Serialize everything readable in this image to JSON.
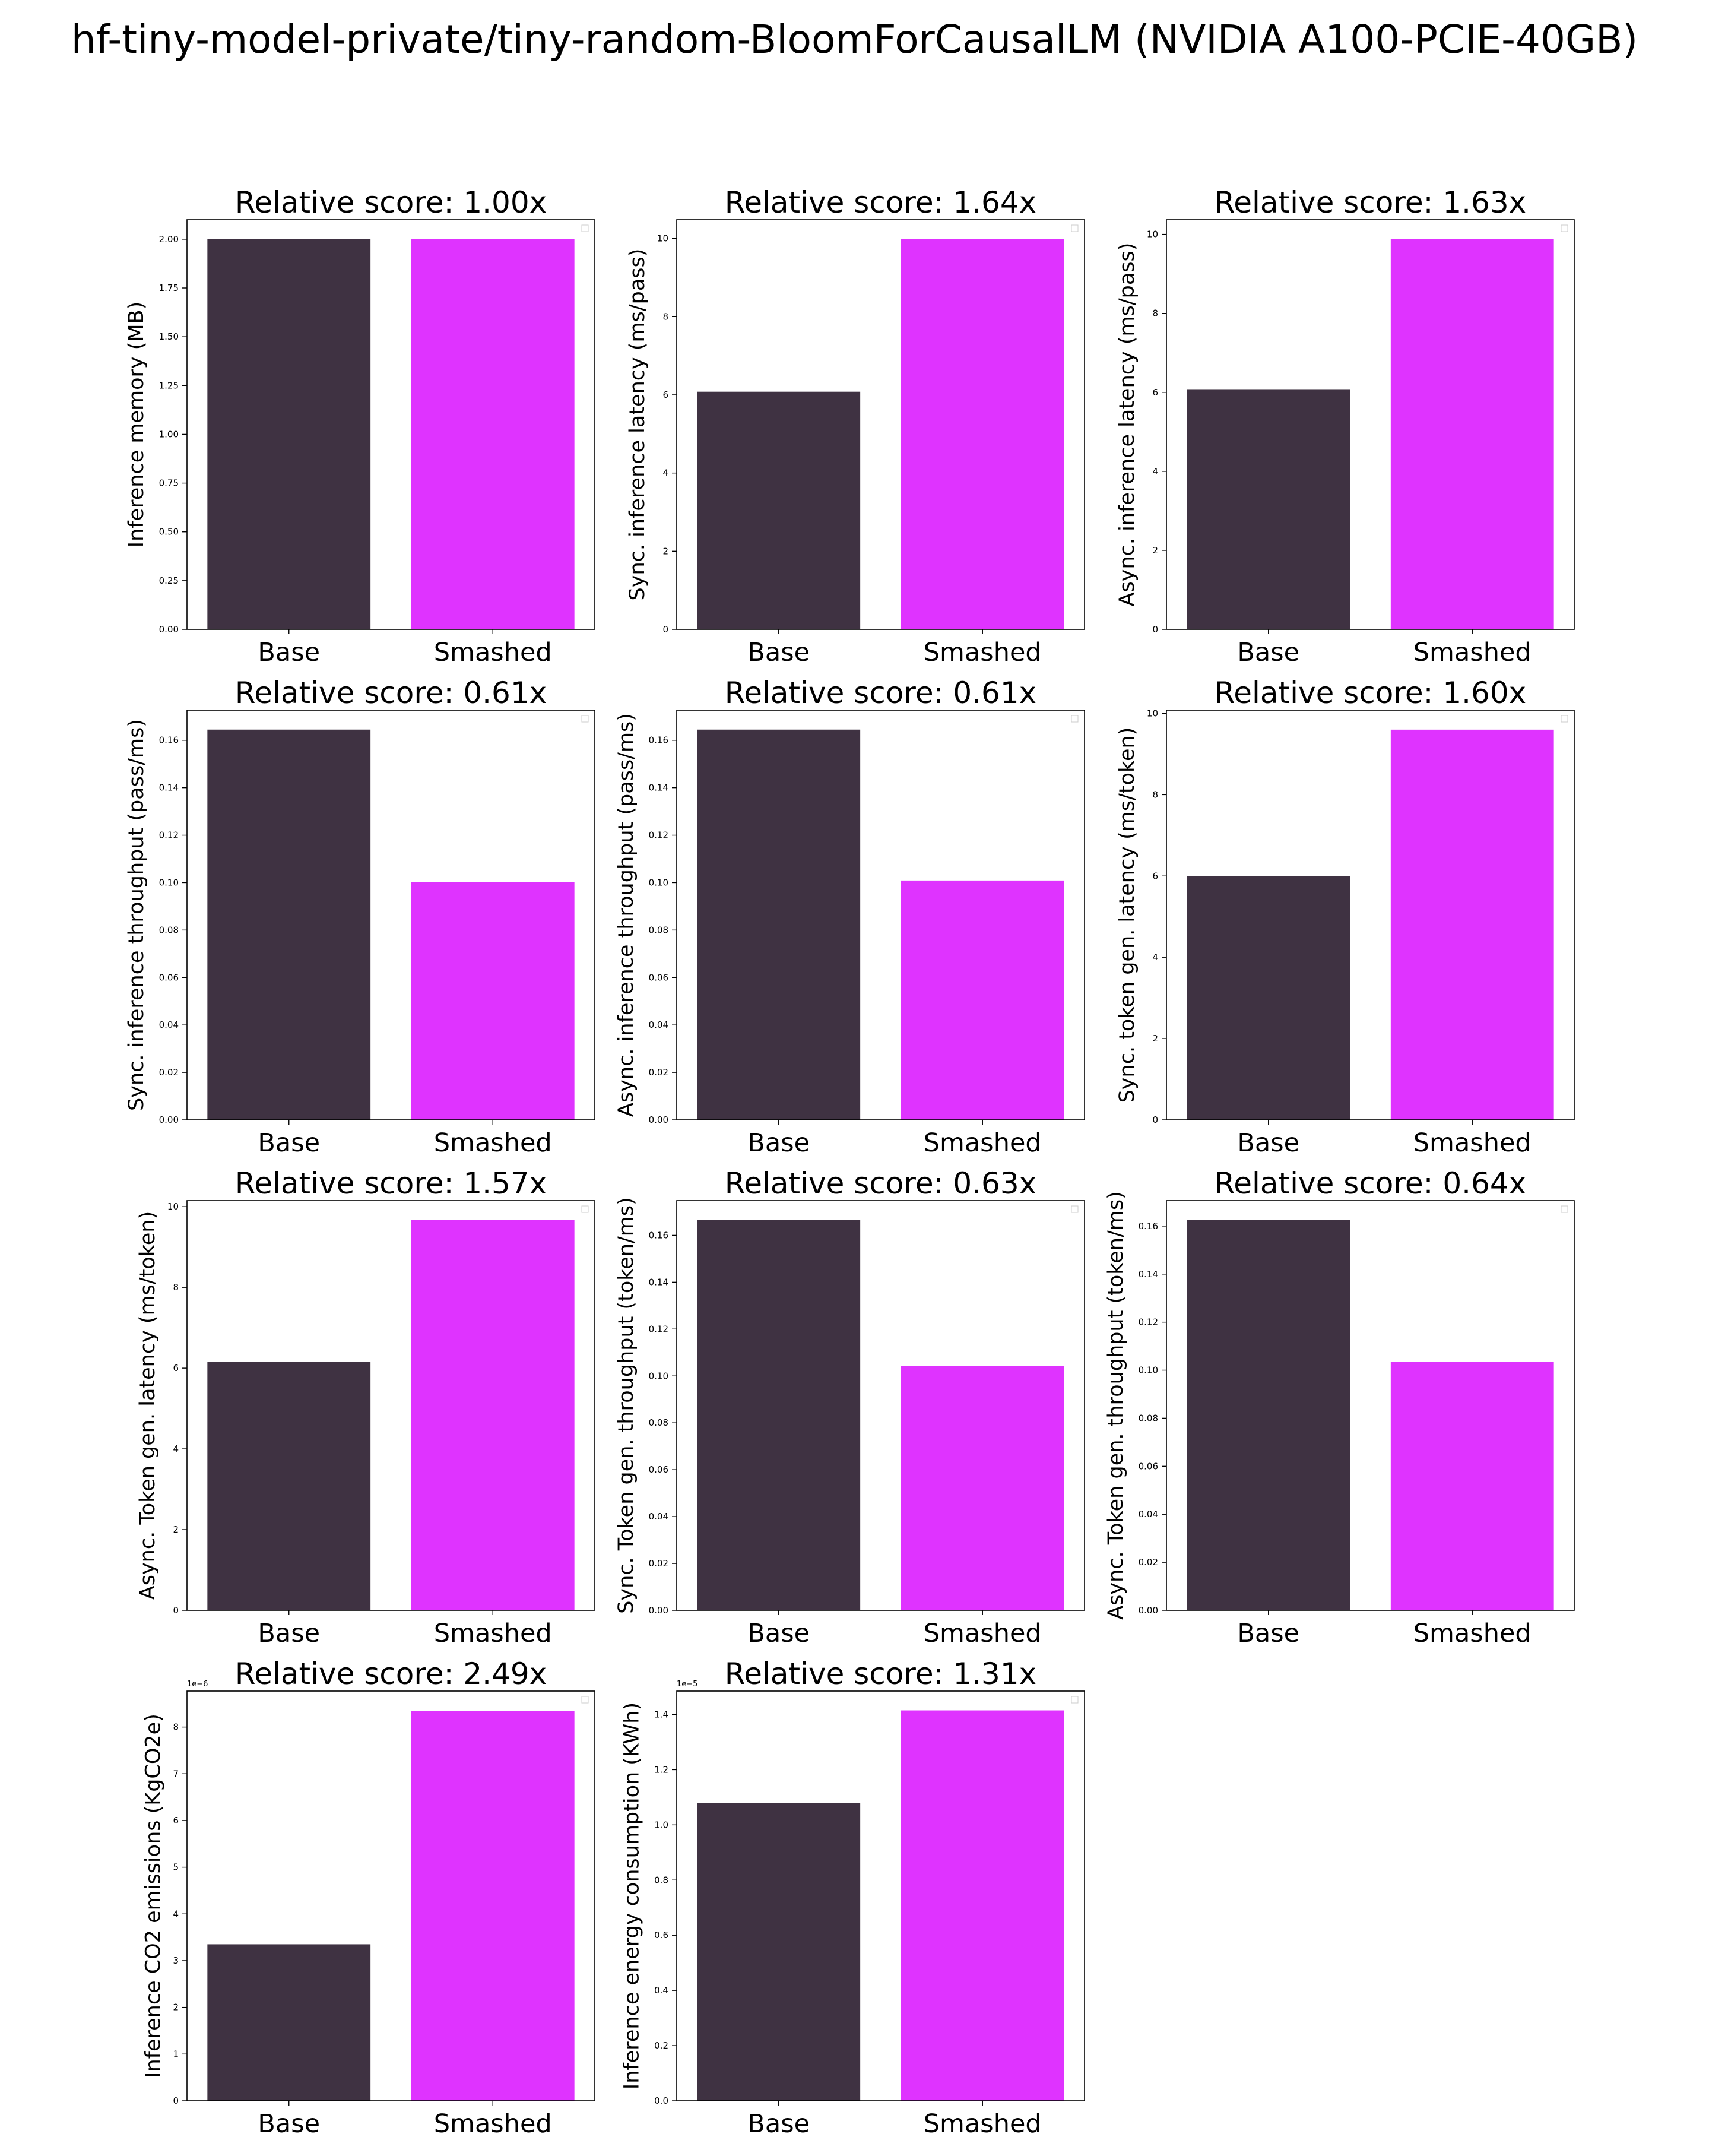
{
  "figure": {
    "title": "hf-tiny-model-private/tiny-random-BloomForCausalLM (NVIDIA A100-PCIE-40GB)",
    "colors": {
      "base": "#3f3242",
      "smashed": "#df33ff",
      "axes": "#000000"
    }
  },
  "chart_data": [
    {
      "type": "bar",
      "title": "Relative score: 1.00x",
      "ylabel": "Inference memory (MB)",
      "categories": [
        "Base",
        "Smashed"
      ],
      "values": [
        2.0,
        2.0
      ],
      "ylim": [
        0,
        2.1
      ],
      "yticks": [
        0.0,
        0.25,
        0.5,
        0.75,
        1.0,
        1.25,
        1.5,
        1.75,
        2.0
      ],
      "ytick_labels": [
        "0.00",
        "0.25",
        "0.50",
        "0.75",
        "1.00",
        "1.25",
        "1.50",
        "1.75",
        "2.00"
      ],
      "multiplier": "",
      "legend": "top-right",
      "grid": false
    },
    {
      "type": "bar",
      "title": "Relative score: 1.64x",
      "ylabel": "Sync. inference latency (ms/pass)",
      "categories": [
        "Base",
        "Smashed"
      ],
      "values": [
        6.08,
        9.98
      ],
      "ylim": [
        0,
        10.48
      ],
      "yticks": [
        0,
        2,
        4,
        6,
        8,
        10
      ],
      "ytick_labels": [
        "0",
        "2",
        "4",
        "6",
        "8",
        "10"
      ],
      "multiplier": "",
      "legend": "top-right",
      "grid": false
    },
    {
      "type": "bar",
      "title": "Relative score: 1.63x",
      "ylabel": "Async. inference latency (ms/pass)",
      "categories": [
        "Base",
        "Smashed"
      ],
      "values": [
        6.08,
        9.88
      ],
      "ylim": [
        0,
        10.37
      ],
      "yticks": [
        0,
        2,
        4,
        6,
        8,
        10
      ],
      "ytick_labels": [
        "0",
        "2",
        "4",
        "6",
        "8",
        "10"
      ],
      "multiplier": "",
      "legend": "top-right",
      "grid": false
    },
    {
      "type": "bar",
      "title": "Relative score: 0.61x",
      "ylabel": "Sync. inference throughput (pass/ms)",
      "categories": [
        "Base",
        "Smashed"
      ],
      "values": [
        0.1645,
        0.1002
      ],
      "ylim": [
        0,
        0.1727
      ],
      "yticks": [
        0,
        0.02,
        0.04,
        0.06,
        0.08,
        0.1,
        0.12,
        0.14,
        0.16
      ],
      "ytick_labels": [
        "0.00",
        "0.02",
        "0.04",
        "0.06",
        "0.08",
        "0.10",
        "0.12",
        "0.14",
        "0.16"
      ],
      "multiplier": "",
      "legend": "top-right",
      "grid": false
    },
    {
      "type": "bar",
      "title": "Relative score: 0.61x",
      "ylabel": "Async. inference throughput (pass/ms)",
      "categories": [
        "Base",
        "Smashed"
      ],
      "values": [
        0.1645,
        0.1009
      ],
      "ylim": [
        0,
        0.1727
      ],
      "yticks": [
        0,
        0.02,
        0.04,
        0.06,
        0.08,
        0.1,
        0.12,
        0.14,
        0.16
      ],
      "ytick_labels": [
        "0.00",
        "0.02",
        "0.04",
        "0.06",
        "0.08",
        "0.10",
        "0.12",
        "0.14",
        "0.16"
      ],
      "multiplier": "",
      "legend": "top-right",
      "grid": false
    },
    {
      "type": "bar",
      "title": "Relative score: 1.60x",
      "ylabel": "Sync. token gen. latency (ms/token)",
      "categories": [
        "Base",
        "Smashed"
      ],
      "values": [
        6.0,
        9.6
      ],
      "ylim": [
        0,
        10.08
      ],
      "yticks": [
        0,
        2,
        4,
        6,
        8,
        10
      ],
      "ytick_labels": [
        "0",
        "2",
        "4",
        "6",
        "8",
        "10"
      ],
      "multiplier": "",
      "legend": "top-right",
      "grid": false
    },
    {
      "type": "bar",
      "title": "Relative score: 1.57x",
      "ylabel": "Async. Token gen. latency (ms/token)",
      "categories": [
        "Base",
        "Smashed"
      ],
      "values": [
        6.15,
        9.67
      ],
      "ylim": [
        0,
        10.15
      ],
      "yticks": [
        0,
        2,
        4,
        6,
        8,
        10
      ],
      "ytick_labels": [
        "0",
        "2",
        "4",
        "6",
        "8",
        "10"
      ],
      "multiplier": "",
      "legend": "top-right",
      "grid": false
    },
    {
      "type": "bar",
      "title": "Relative score: 0.63x",
      "ylabel": "Sync. Token gen. throughput (token/ms)",
      "categories": [
        "Base",
        "Smashed"
      ],
      "values": [
        0.1665,
        0.1042
      ],
      "ylim": [
        0,
        0.1748
      ],
      "yticks": [
        0,
        0.02,
        0.04,
        0.06,
        0.08,
        0.1,
        0.12,
        0.14,
        0.16
      ],
      "ytick_labels": [
        "0.00",
        "0.02",
        "0.04",
        "0.06",
        "0.08",
        "0.10",
        "0.12",
        "0.14",
        "0.16"
      ],
      "multiplier": "",
      "legend": "top-right",
      "grid": false
    },
    {
      "type": "bar",
      "title": "Relative score: 0.64x",
      "ylabel": "Async. Token gen. throughput (token/ms)",
      "categories": [
        "Base",
        "Smashed"
      ],
      "values": [
        0.1625,
        0.1034
      ],
      "ylim": [
        0,
        0.1706
      ],
      "yticks": [
        0,
        0.02,
        0.04,
        0.06,
        0.08,
        0.1,
        0.12,
        0.14,
        0.16
      ],
      "ytick_labels": [
        "0.00",
        "0.02",
        "0.04",
        "0.06",
        "0.08",
        "0.10",
        "0.12",
        "0.14",
        "0.16"
      ],
      "multiplier": "",
      "legend": "top-right",
      "grid": false
    },
    {
      "type": "bar",
      "title": "Relative score: 2.49x",
      "ylabel": "Inference CO2 emissions (KgCO2e)",
      "categories": [
        "Base",
        "Smashed"
      ],
      "values": [
        3.35e-06,
        8.35e-06
      ],
      "ylim": [
        0,
        8.77e-06
      ],
      "yticks": [
        0,
        1e-06,
        2e-06,
        3e-06,
        4e-06,
        5e-06,
        6e-06,
        7e-06,
        8e-06
      ],
      "ytick_labels": [
        "0",
        "1",
        "2",
        "3",
        "4",
        "5",
        "6",
        "7",
        "8"
      ],
      "multiplier": "1e−6",
      "legend": "top-right",
      "grid": false
    },
    {
      "type": "bar",
      "title": "Relative score: 1.31x",
      "ylabel": "Inference energy consumption (KWh)",
      "categories": [
        "Base",
        "Smashed"
      ],
      "values": [
        1.08e-05,
        1.415e-05
      ],
      "ylim": [
        0,
        1.485e-05
      ],
      "yticks": [
        0,
        2e-06,
        4e-06,
        6e-06,
        8e-06,
        1e-05,
        1.2e-05,
        1.4e-05
      ],
      "ytick_labels": [
        "0.0",
        "0.2",
        "0.4",
        "0.6",
        "0.8",
        "1.0",
        "1.2",
        "1.4"
      ],
      "multiplier": "1e−5",
      "legend": "top-right",
      "grid": false
    }
  ]
}
